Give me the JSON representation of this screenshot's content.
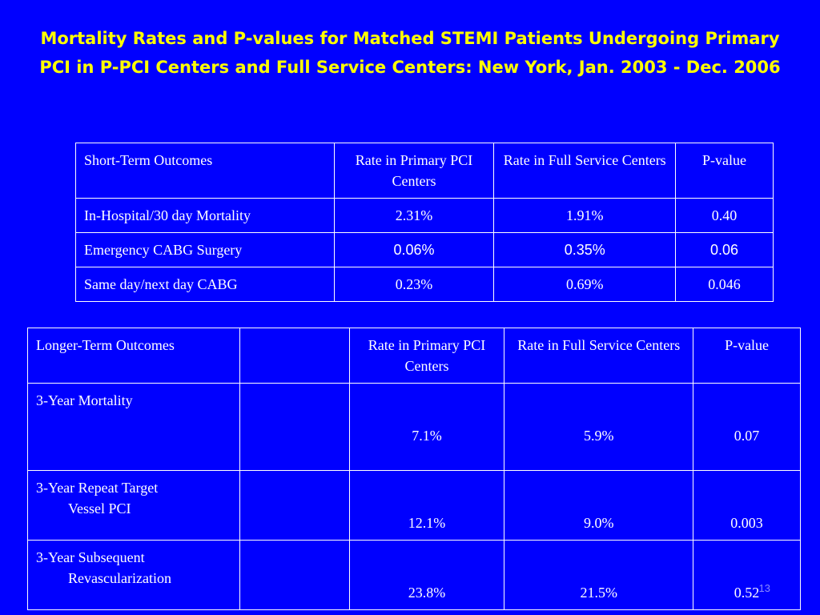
{
  "title": "Mortality Rates and P-values for Matched STEMI Patients Undergoing Primary PCI in P-PCI Centers and Full Service Centers: New York, Jan. 2003 - Dec. 2006",
  "short_term": {
    "headers": [
      "Short-Term Outcomes",
      "Rate in Primary PCI Centers",
      "Rate in Full Service Centers",
      "P-value"
    ],
    "rows": [
      {
        "label": "In-Hospital/30 day Mortality",
        "primary": "2.31%",
        "full": "1.91%",
        "p": "0.40"
      },
      {
        "label": "Emergency CABG Surgery",
        "primary": "0.06%",
        "full": "0.35%",
        "p": "0.06"
      },
      {
        "label": "Same day/next day CABG",
        "primary": "0.23%",
        "full": "0.69%",
        "p": "0.046"
      }
    ]
  },
  "long_term": {
    "headers": [
      "Longer-Term Outcomes",
      "",
      "Rate in Primary PCI Centers",
      "Rate in Full Service Centers",
      "P-value"
    ],
    "rows": [
      {
        "label_line1": "3-Year Mortality",
        "label_line2": "",
        "primary": "7.1%",
        "full": "5.9%",
        "p": "0.07"
      },
      {
        "label_line1": "3-Year Repeat Target",
        "label_line2": "Vessel PCI",
        "primary": "12.1%",
        "full": "9.0%",
        "p": "0.003"
      },
      {
        "label_line1": "3-Year Subsequent",
        "label_line2": "Revascularization",
        "primary": "23.8%",
        "full": "21.5%",
        "p": "0.52"
      }
    ]
  },
  "slide_number": "13",
  "colors": {
    "background": "#0000ff",
    "title": "#ffff00",
    "table_text": "#ffffff"
  }
}
